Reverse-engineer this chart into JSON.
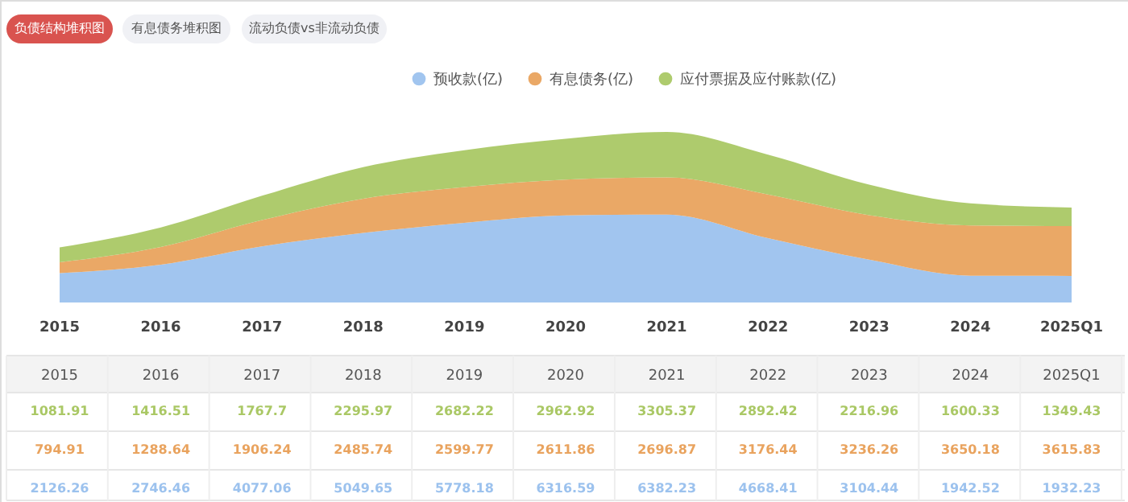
{
  "chart_data": {
    "type": "area",
    "stacked": true,
    "annotations": [
      "负债结构堆积图",
      "有息债务堆积图",
      "流动负债vs非流动负债"
    ],
    "categories": [
      "2015",
      "2016",
      "2017",
      "2018",
      "2019",
      "2020",
      "2021",
      "2022",
      "2023",
      "2024",
      "2025Q1"
    ],
    "series": [
      {
        "name": "预收款(亿)",
        "color": "#9cc2ee",
        "values": [
          2126.26,
          2746.46,
          4077.06,
          5049.65,
          5778.18,
          6316.59,
          6382.23,
          4668.41,
          3104.44,
          1942.52,
          1932.23
        ]
      },
      {
        "name": "有息债务(亿)",
        "color": "#e9a35e",
        "values": [
          794.91,
          1288.64,
          1906.24,
          2485.74,
          2599.77,
          2611.86,
          2696.87,
          3176.44,
          3236.26,
          3650.18,
          3615.83
        ]
      },
      {
        "name": "应付票据及应付账款(亿)",
        "color": "#aac865",
        "values": [
          1081.91,
          1416.51,
          1767.7,
          2295.97,
          2682.22,
          2962.92,
          3305.37,
          2892.42,
          2216.96,
          1600.33,
          1349.43
        ]
      }
    ],
    "data_labels": true,
    "legend": "top"
  }
}
